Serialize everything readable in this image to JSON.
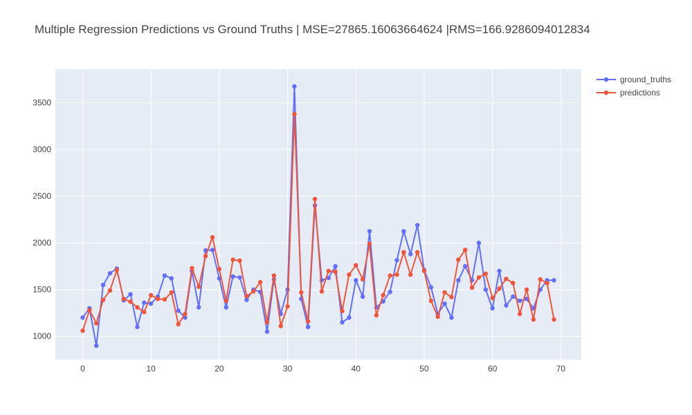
{
  "chart_data": {
    "type": "line",
    "title": "Multiple Regression Predictions vs Ground Truths | MSE=27865.16063664624 |RMS=166.9286094012834",
    "xlabel": "",
    "ylabel": "",
    "xlim": [
      -4,
      73
    ],
    "ylim": [
      750,
      3860
    ],
    "x_ticks": [
      0,
      10,
      20,
      30,
      40,
      50,
      60,
      70
    ],
    "y_ticks": [
      1000,
      1500,
      2000,
      2500,
      3000,
      3500
    ],
    "grid": true,
    "legend_position": "top-right",
    "background_color": "#e5ecf6",
    "series": [
      {
        "name": "ground_truths",
        "color": "#636efa",
        "x": [
          0,
          1,
          2,
          3,
          4,
          5,
          6,
          7,
          8,
          9,
          10,
          11,
          12,
          13,
          14,
          15,
          16,
          17,
          18,
          19,
          20,
          21,
          22,
          23,
          24,
          25,
          26,
          27,
          28,
          29,
          30,
          31,
          32,
          33,
          34,
          35,
          36,
          37,
          38,
          39,
          40,
          41,
          42,
          43,
          44,
          45,
          46,
          47,
          48,
          49,
          50,
          51,
          52,
          53,
          54,
          55,
          56,
          57,
          58,
          59,
          60,
          61,
          62,
          63,
          64,
          65,
          66,
          67,
          68,
          69
        ],
        "values": [
          1200,
          1300,
          900,
          1550,
          1675,
          1725,
          1385,
          1450,
          1100,
          1360,
          1350,
          1425,
          1650,
          1620,
          1275,
          1200,
          1700,
          1310,
          1920,
          1925,
          1620,
          1310,
          1640,
          1630,
          1390,
          1500,
          1475,
          1050,
          1610,
          1240,
          1500,
          3675,
          1400,
          1100,
          2400,
          1600,
          1625,
          1750,
          1150,
          1200,
          1600,
          1425,
          2125,
          1310,
          1375,
          1475,
          1815,
          2125,
          1880,
          2190,
          1710,
          1525,
          1240,
          1350,
          1200,
          1600,
          1750,
          1600,
          2000,
          1500,
          1300,
          1700,
          1330,
          1425,
          1380,
          1400,
          1300,
          1500,
          1600,
          1600
        ]
      },
      {
        "name": "predictions",
        "color": "#ef553b",
        "x": [
          0,
          1,
          2,
          3,
          4,
          5,
          6,
          7,
          8,
          9,
          10,
          11,
          12,
          13,
          14,
          15,
          16,
          17,
          18,
          19,
          20,
          21,
          22,
          23,
          24,
          25,
          26,
          27,
          28,
          29,
          30,
          31,
          32,
          33,
          34,
          35,
          36,
          37,
          38,
          39,
          40,
          41,
          42,
          43,
          44,
          45,
          46,
          47,
          48,
          49,
          50,
          51,
          52,
          53,
          54,
          55,
          56,
          57,
          58,
          59,
          60,
          61,
          62,
          63,
          64,
          65,
          66,
          67,
          68,
          69
        ],
        "values": [
          1060,
          1280,
          1140,
          1390,
          1490,
          1710,
          1400,
          1370,
          1310,
          1260,
          1440,
          1400,
          1395,
          1470,
          1130,
          1240,
          1730,
          1530,
          1860,
          2060,
          1720,
          1380,
          1820,
          1810,
          1430,
          1480,
          1580,
          1150,
          1650,
          1110,
          1320,
          3380,
          1470,
          1160,
          2470,
          1480,
          1700,
          1690,
          1270,
          1660,
          1760,
          1610,
          1990,
          1225,
          1440,
          1650,
          1660,
          1900,
          1660,
          1900,
          1700,
          1380,
          1210,
          1470,
          1420,
          1820,
          1925,
          1520,
          1630,
          1670,
          1410,
          1510,
          1615,
          1570,
          1240,
          1500,
          1180,
          1610,
          1570,
          1180
        ]
      }
    ]
  }
}
